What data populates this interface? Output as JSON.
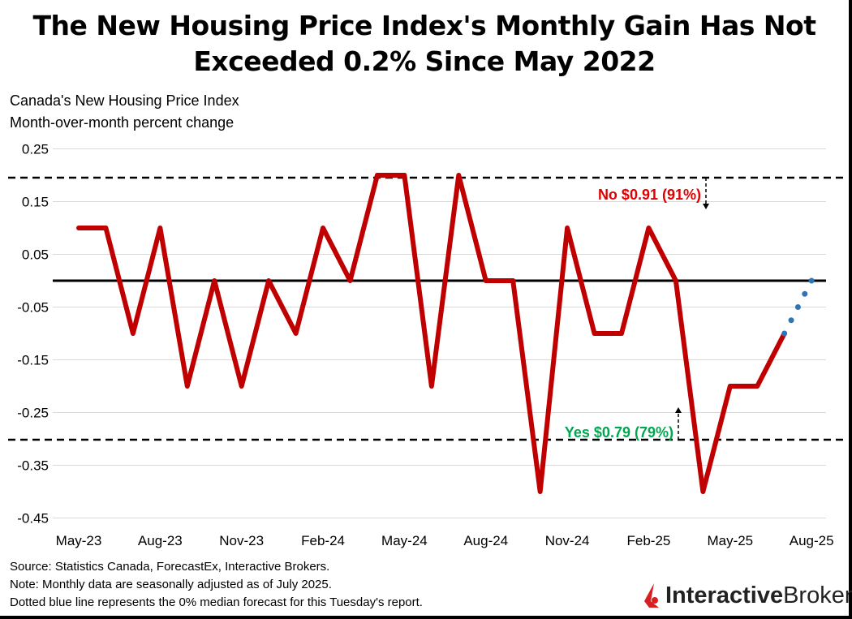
{
  "title_line1": "The New Housing Price Index's Monthly Gain Has Not",
  "title_line2": "Exceeded 0.2% Since May 2022",
  "subtitle_line1": "Canada's New Housing Price Index",
  "subtitle_line2": "Month-over-month percent change",
  "notes": [
    "Source: Statistics Canada, ForecastEx, Interactive Brokers.",
    "Note: Monthly data are seasonally adjusted as of July 2025.",
    "Dotted blue line represents the 0% median forecast for this Tuesday's report."
  ],
  "logo": {
    "bold": "Interactive",
    "regular": "Brokers",
    "color": "#d81e1e"
  },
  "chart_data": {
    "type": "line",
    "ylim": [
      -0.45,
      0.25
    ],
    "yticks": [
      "0.25",
      "0.15",
      "0.05",
      "-0.05",
      "-0.15",
      "-0.25",
      "-0.35",
      "-0.45"
    ],
    "ytick_values": [
      0.25,
      0.15,
      0.05,
      -0.05,
      -0.15,
      -0.25,
      -0.35,
      -0.45
    ],
    "xtick_labels": [
      "May-23",
      "Aug-23",
      "Nov-23",
      "Feb-24",
      "May-24",
      "Aug-24",
      "Nov-24",
      "Feb-25",
      "May-25",
      "Aug-25"
    ],
    "grid": true,
    "x": [
      "May-23",
      "Jun-23",
      "Jul-23",
      "Aug-23",
      "Sep-23",
      "Oct-23",
      "Nov-23",
      "Dec-23",
      "Jan-24",
      "Feb-24",
      "Mar-24",
      "Apr-24",
      "May-24",
      "Jun-24",
      "Jul-24",
      "Aug-24",
      "Sep-24",
      "Oct-24",
      "Nov-24",
      "Dec-24",
      "Jan-25",
      "Feb-25",
      "Mar-25",
      "Apr-25",
      "May-25",
      "Jun-25",
      "Jul-25"
    ],
    "series": [
      {
        "color": "#c00000",
        "values": [
          0.1,
          0.1,
          -0.1,
          0.1,
          -0.2,
          0.0,
          -0.2,
          0.0,
          -0.1,
          0.1,
          0.0,
          0.2,
          0.2,
          -0.2,
          0.2,
          0.0,
          0.0,
          -0.4,
          0.1,
          -0.1,
          -0.1,
          0.1,
          0.0,
          -0.4,
          -0.2,
          -0.2,
          -0.1
        ]
      },
      {
        "style": "dotted",
        "color": "#2e75b6",
        "x": [
          "Jul-25",
          "Aug-25"
        ],
        "values": [
          -0.1,
          0.0
        ]
      }
    ],
    "thresholds": [
      {
        "value": 0.2,
        "label": "No $0.91 (91%)",
        "color": "#e00000"
      },
      {
        "value": -0.3,
        "label": "Yes $0.79 (79%)",
        "color": "#00a650"
      }
    ],
    "zero_line": 0
  }
}
